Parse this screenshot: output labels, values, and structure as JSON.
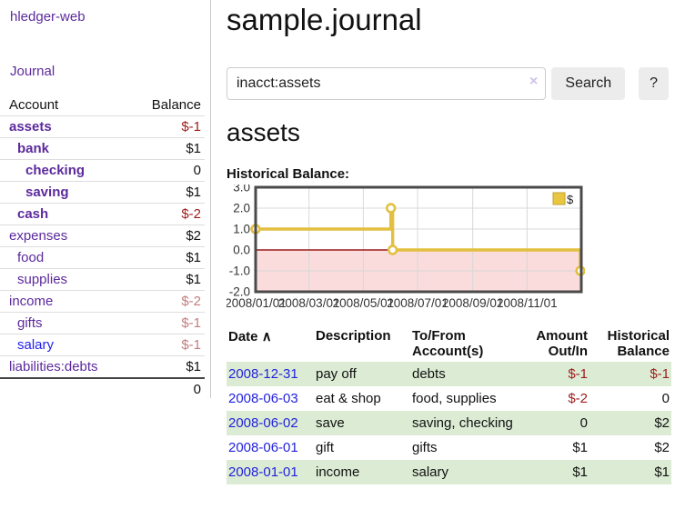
{
  "app": {
    "title": "hledger-web"
  },
  "sidebar": {
    "journal_link": "Journal",
    "accounts": {
      "col_account": "Account",
      "col_balance": "Balance",
      "rows": [
        {
          "name": "assets",
          "balance": "$-1",
          "depth": 1,
          "bold": true,
          "balance_style": "neg-strong",
          "link_color": "purple"
        },
        {
          "name": "bank",
          "balance": "$1",
          "depth": 2,
          "bold": true,
          "balance_style": "pos-strong",
          "link_color": "purple"
        },
        {
          "name": "checking",
          "balance": "0",
          "depth": 3,
          "bold": true,
          "balance_style": "pos-strong",
          "link_color": "purple"
        },
        {
          "name": "saving",
          "balance": "$1",
          "depth": 3,
          "bold": true,
          "balance_style": "pos-strong",
          "link_color": "purple"
        },
        {
          "name": "cash",
          "balance": "$-2",
          "depth": 2,
          "bold": true,
          "balance_style": "neg-strong",
          "link_color": "purple"
        },
        {
          "name": "expenses",
          "balance": "$2",
          "depth": 1,
          "bold": false,
          "balance_style": "pos",
          "link_color": "purple"
        },
        {
          "name": "food",
          "balance": "$1",
          "depth": 2,
          "bold": false,
          "balance_style": "pos",
          "link_color": "purple"
        },
        {
          "name": "supplies",
          "balance": "$1",
          "depth": 2,
          "bold": false,
          "balance_style": "pos",
          "link_color": "purple"
        },
        {
          "name": "income",
          "balance": "$-2",
          "depth": 1,
          "bold": false,
          "balance_style": "neg-faded",
          "link_color": "purple"
        },
        {
          "name": "gifts",
          "balance": "$-1",
          "depth": 2,
          "bold": false,
          "balance_style": "neg-faded",
          "link_color": "purple"
        },
        {
          "name": "salary",
          "balance": "$-1",
          "depth": 2,
          "bold": false,
          "balance_style": "neg-faded",
          "link_color": "blue"
        },
        {
          "name": "liabilities:debts",
          "balance": "$1",
          "depth": 1,
          "bold": false,
          "balance_style": "pos",
          "link_color": "purple"
        }
      ],
      "total": "0"
    }
  },
  "header": {
    "title": "sample.journal"
  },
  "search": {
    "value": "inacct:assets",
    "clear_icon": "×",
    "button": "Search",
    "help_button": "?"
  },
  "register": {
    "heading": "assets",
    "chart_label": "Historical Balance:",
    "table": {
      "headers": {
        "date": "Date",
        "sort_icon": "∧",
        "description": "Description",
        "accounts": "To/From Account(s)",
        "amount": "Amount Out/In",
        "balance": "Historical Balance"
      },
      "rows": [
        {
          "date": "2008-12-31",
          "description": "pay off",
          "accounts": "debts",
          "amount": "$-1",
          "amount_neg": true,
          "balance": "$-1",
          "balance_neg": true,
          "stripe": true
        },
        {
          "date": "2008-06-03",
          "description": "eat & shop",
          "accounts": "food, supplies",
          "amount": "$-2",
          "amount_neg": true,
          "balance": "0",
          "balance_neg": false,
          "stripe": false
        },
        {
          "date": "2008-06-02",
          "description": "save",
          "accounts": "saving, checking",
          "amount": "0",
          "amount_neg": false,
          "balance": "$2",
          "balance_neg": false,
          "stripe": true
        },
        {
          "date": "2008-06-01",
          "description": "gift",
          "accounts": "gifts",
          "amount": "$1",
          "amount_neg": false,
          "balance": "$2",
          "balance_neg": false,
          "stripe": false
        },
        {
          "date": "2008-01-01",
          "description": "income",
          "accounts": "salary",
          "amount": "$1",
          "amount_neg": false,
          "balance": "$1",
          "balance_neg": false,
          "stripe": true
        }
      ]
    }
  },
  "chart_data": {
    "type": "line",
    "title": "Historical Balance",
    "step": true,
    "series": [
      {
        "name": "$",
        "points": [
          [
            "2008-01-01",
            1
          ],
          [
            "2008-06-01",
            2
          ],
          [
            "2008-06-03",
            0
          ],
          [
            "2008-12-31",
            -1
          ]
        ]
      }
    ],
    "x_range": [
      "2008-01-01",
      "2009-01-01"
    ],
    "x_ticks": [
      "2008/01/01",
      "2008/03/01",
      "2008/05/01",
      "2008/07/01",
      "2008/09/01",
      "2008/11/01"
    ],
    "y_ticks": [
      "3.0",
      "2.0",
      "1.0",
      "0.0",
      "-1.0",
      "-2.0"
    ],
    "ylim": [
      -2,
      3
    ],
    "grid": true,
    "legend": {
      "label": "$",
      "position": "top-right"
    },
    "colors": {
      "line": "#e3bf3f",
      "marker_fill": "#ffffff",
      "negative_fill": "#fadcdc",
      "zero_line": "#9b1c1c",
      "grid_line": "#d8d8d8",
      "border": "#4a4a4a",
      "legend_swatch": "#e9c63f",
      "legend_swatch_border": "#c2a231",
      "tick_text": "#333333"
    }
  }
}
